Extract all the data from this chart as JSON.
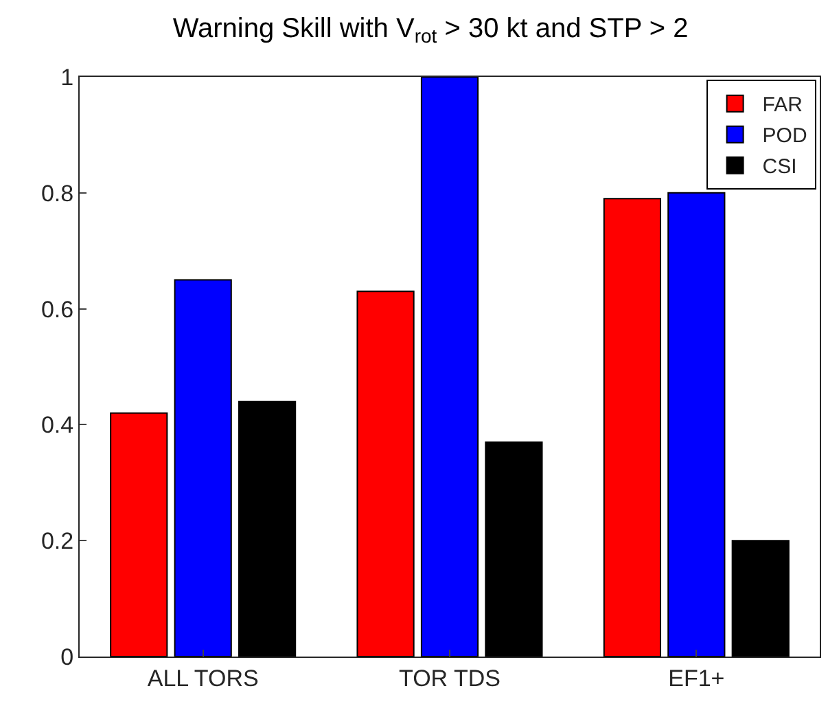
{
  "chart_data": {
    "type": "bar",
    "title": "Warning Skill with V$_{rot}$ > 30 kt and STP > 2",
    "categories": [
      "ALL TORS",
      "TOR TDS",
      "EF1+"
    ],
    "series": [
      {
        "name": "FAR",
        "color": "#ff0000",
        "values": [
          0.42,
          0.63,
          0.79
        ]
      },
      {
        "name": "POD",
        "color": "#0000ff",
        "values": [
          0.65,
          1.0,
          0.8
        ]
      },
      {
        "name": "CSI",
        "color": "#000000",
        "values": [
          0.44,
          0.37,
          0.2
        ]
      }
    ],
    "ylim": [
      0,
      1
    ],
    "yticks": [
      0,
      0.2,
      0.4,
      0.6,
      0.8,
      1
    ],
    "grid": false,
    "legend": "top right"
  }
}
